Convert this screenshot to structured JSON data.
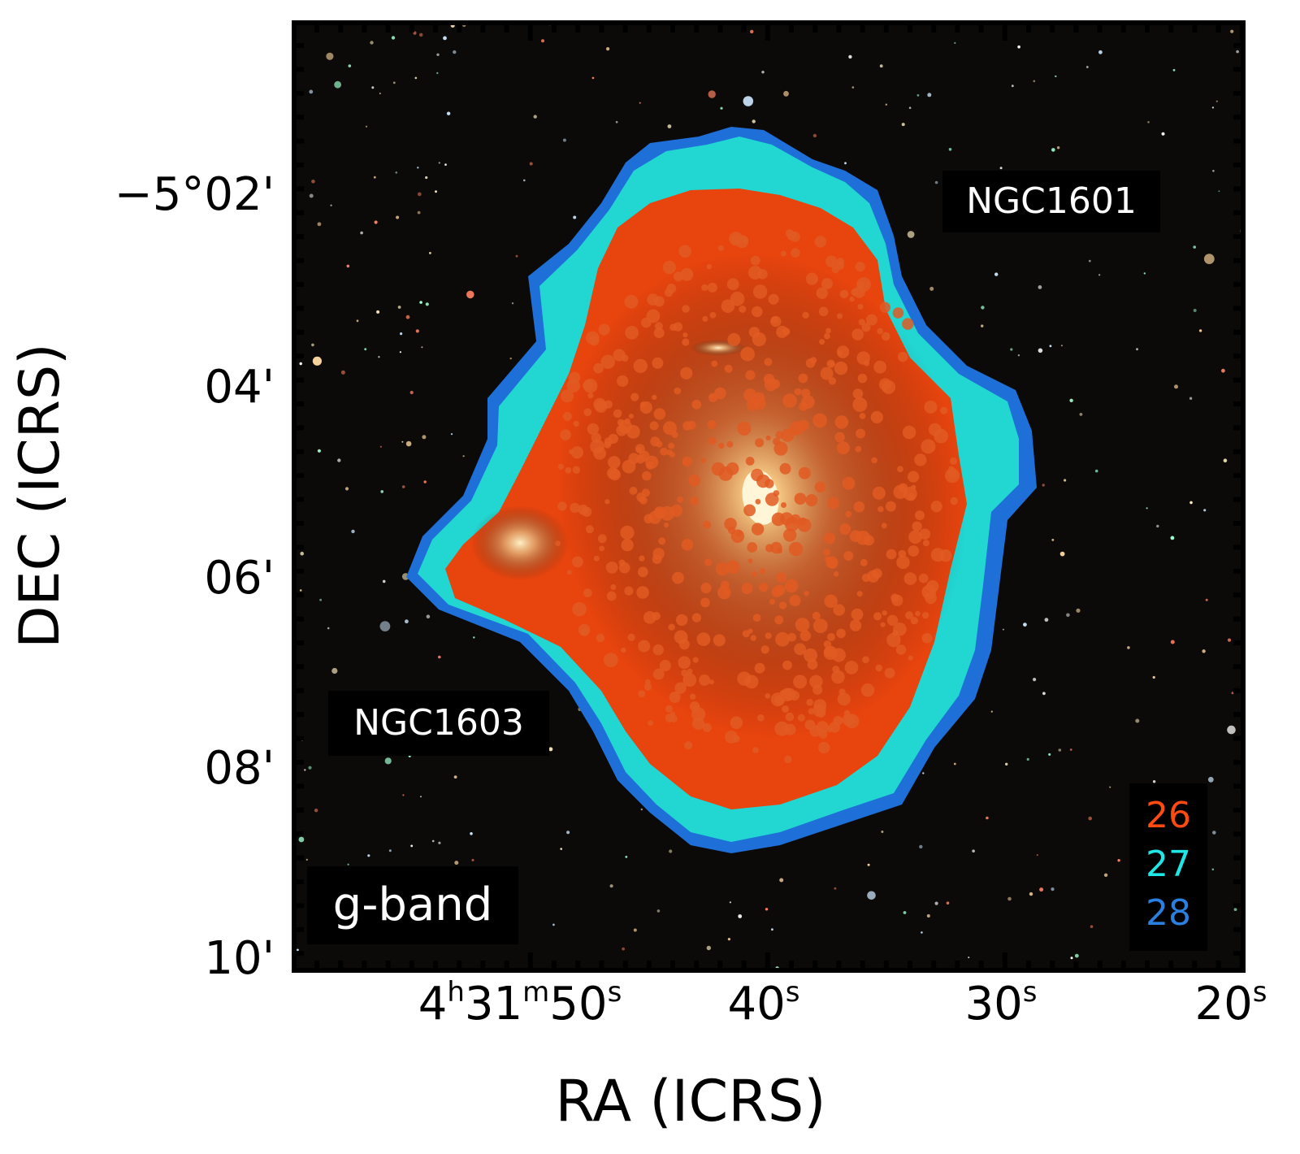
{
  "figure": {
    "band_label": "g-band",
    "object_labels": [
      "NGC1601",
      "NGC1603"
    ],
    "xlabel": "RA (ICRS)",
    "ylabel": "DEC (ICRS)",
    "x_ticks": [
      {
        "h": "4",
        "m": "31",
        "s": "50"
      },
      {
        "s": "40"
      },
      {
        "s": "30"
      },
      {
        "s": "20"
      }
    ],
    "y_ticks": [
      "−5°02'",
      "04'",
      "06'",
      "08'",
      "10'"
    ],
    "legend": [
      {
        "label": "26",
        "color": "#ff4a10"
      },
      {
        "label": "27",
        "color": "#20e6e6"
      },
      {
        "label": "28",
        "color": "#2a80e0"
      }
    ],
    "contour_colors": {
      "26": "#e8440e",
      "27": "#22d6d2",
      "28": "#1f6fd8"
    },
    "sky_background": "#0b0a08",
    "galaxy_core_color": "#ffe8b0"
  }
}
